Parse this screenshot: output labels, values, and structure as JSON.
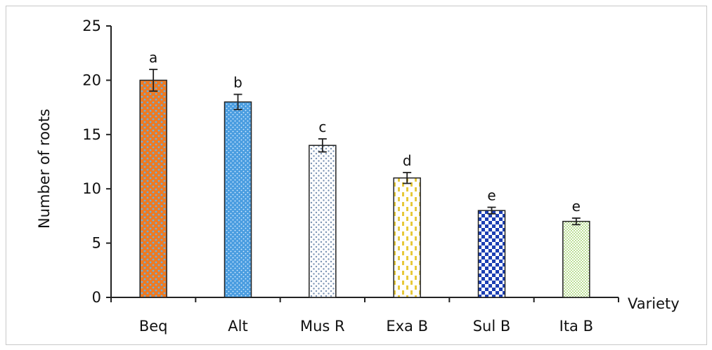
{
  "chart_data": {
    "type": "bar",
    "xlabel": "Variety",
    "ylabel": "Number of roots",
    "ylim": [
      0,
      25
    ],
    "yticks": [
      0,
      5,
      10,
      15,
      20,
      25
    ],
    "grid": false,
    "categories": [
      "Beq",
      "Alt",
      "Mus R",
      "Exa B",
      "Sul B",
      "Ita B"
    ],
    "values": [
      20,
      18,
      14,
      11,
      8,
      7
    ],
    "errors": [
      1.0,
      0.7,
      0.6,
      0.5,
      0.3,
      0.3
    ],
    "significance_letters": [
      "a",
      "b",
      "c",
      "d",
      "e",
      "e"
    ],
    "bar_patterns": [
      {
        "fill": "#ee7a22",
        "dot": "#6aaede",
        "style": "orange-blue-dots"
      },
      {
        "fill": "#4a9de0",
        "dot": "#ffffff",
        "style": "blue-white-dots"
      },
      {
        "fill": "#ffffff",
        "dot": "#7a93b3",
        "style": "grey-blue-dots"
      },
      {
        "fill": "#ffffff",
        "dot": "#e7c93a",
        "style": "yellow-dashes"
      },
      {
        "fill": "#ffffff",
        "dot": "#1c3fb3",
        "style": "blue-checker"
      },
      {
        "fill": "#ffffff",
        "dot": "#8cc84b",
        "style": "green-dots"
      }
    ]
  }
}
